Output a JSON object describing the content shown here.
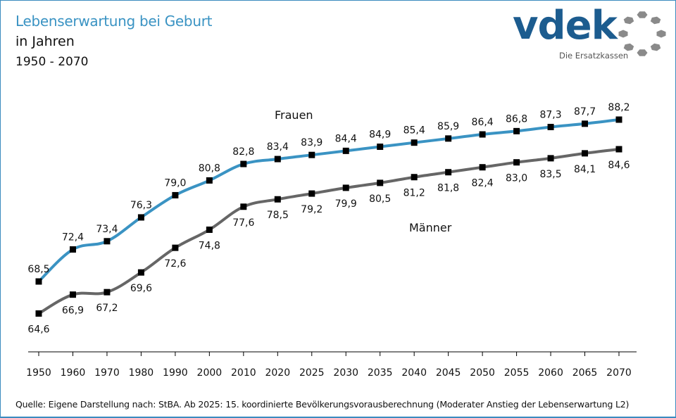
{
  "header": {
    "title": "Lebenserwartung bei Geburt",
    "subtitle": "in Jahren",
    "range": "1950 - 2070"
  },
  "logo": {
    "name": "vdek",
    "tagline": "Die Ersatzkassen",
    "brand_color": "#1c5c8f",
    "ring_color": "#8a8a8a"
  },
  "footer": {
    "source": "Quelle: Eigene Darstellung nach: StBA.  Ab 2025: 15. koordinierte Bevölkerungsvorausberechnung  (Moderater Anstieg der Lebenserwartung  L2)"
  },
  "chart_data": {
    "type": "line",
    "title": "Lebenserwartung bei Geburt",
    "xlabel": "",
    "ylabel": "in Jahren",
    "categories": [
      "1950",
      "1960",
      "1970",
      "1980",
      "1990",
      "2000",
      "2010",
      "2020",
      "2025",
      "2030",
      "2035",
      "2040",
      "2045",
      "2050",
      "2055",
      "2060",
      "2065",
      "2070"
    ],
    "ylim": [
      60,
      92
    ],
    "grid": false,
    "decimal_separator": ",",
    "series": [
      {
        "name": "Frauen",
        "color": "#3a93c3",
        "values": [
          68.5,
          72.4,
          73.4,
          76.3,
          79.0,
          80.8,
          82.8,
          83.4,
          83.9,
          84.4,
          84.9,
          85.4,
          85.9,
          86.4,
          86.8,
          87.3,
          87.7,
          88.2
        ],
        "label_position": "above"
      },
      {
        "name": "Männer",
        "color": "#666666",
        "values": [
          64.6,
          66.9,
          67.2,
          69.6,
          72.6,
          74.8,
          77.6,
          78.5,
          79.2,
          79.9,
          80.5,
          81.2,
          81.8,
          82.4,
          83.0,
          83.5,
          84.1,
          84.6
        ],
        "label_position": "below"
      }
    ],
    "marker": "square",
    "marker_color": "#000000"
  }
}
